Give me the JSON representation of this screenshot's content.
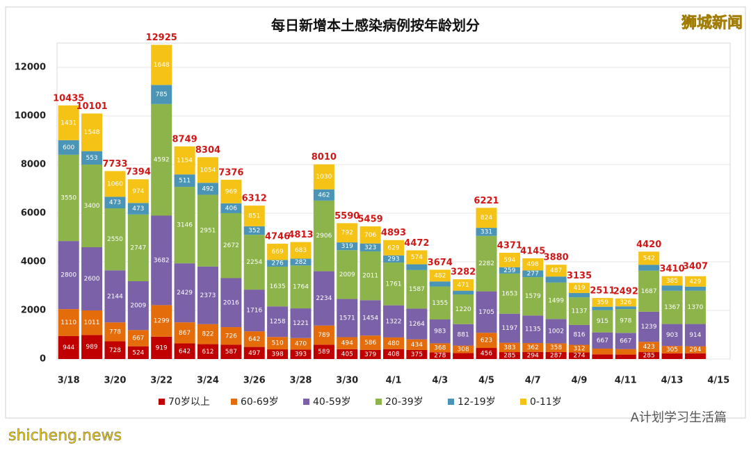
{
  "chart_data": {
    "type": "stacked_bar",
    "title": "每日新增本土感染病例按年龄划分",
    "categories": [
      "3/18",
      null,
      "3/20",
      null,
      "3/22",
      null,
      "3/24",
      null,
      "3/26",
      null,
      "3/28",
      null,
      "3/30",
      null,
      "4/1",
      null,
      "4/3",
      null,
      "4/5",
      null,
      "4/7",
      null,
      "4/9",
      null,
      "4/11",
      null,
      "4/13",
      null,
      "4/15"
    ],
    "series": [
      {
        "name": "70岁以上",
        "color": "#c00000",
        "values": [
          944,
          989,
          728,
          524,
          919,
          642,
          612,
          587,
          497,
          398,
          393,
          589,
          405,
          379,
          408,
          375,
          278,
          247,
          456,
          285,
          294,
          287,
          274,
          193,
          183,
          285,
          233,
          233,
          null
        ]
      },
      {
        "name": "60-69岁",
        "color": "#e46c0a",
        "values": [
          1110,
          1011,
          778,
          667,
          1299,
          867,
          822,
          726,
          642,
          510,
          470,
          789,
          494,
          586,
          480,
          434,
          368,
          308,
          623,
          383,
          362,
          358,
          312,
          235,
          227,
          423,
          305,
          294,
          null
        ]
      },
      {
        "name": "40-59岁",
        "color": "#7b62a8",
        "values": [
          2800,
          2600,
          2144,
          2009,
          3682,
          2429,
          2373,
          2016,
          1716,
          1258,
          1221,
          2234,
          1571,
          1454,
          1322,
          1264,
          983,
          881,
          1705,
          1197,
          1135,
          1002,
          816,
          667,
          667,
          1239,
          903,
          914,
          null
        ]
      },
      {
        "name": "20-39岁",
        "color": "#8db44a",
        "values": [
          3550,
          3400,
          2550,
          2747,
          4592,
          3146,
          2951,
          2672,
          2254,
          1635,
          1764,
          2906,
          2009,
          2011,
          1761,
          1587,
          1355,
          1220,
          2282,
          1653,
          1579,
          1499,
          1137,
          915,
          978,
          1687,
          1367,
          1370,
          null
        ]
      },
      {
        "name": "12-19岁",
        "color": "#4a95b5",
        "values": [
          600,
          553,
          473,
          473,
          785,
          511,
          492,
          406,
          352,
          276,
          282,
          462,
          319,
          323,
          293,
          238,
          208,
          155,
          331,
          259,
          277,
          247,
          177,
          142,
          111,
          244,
          217,
          167,
          null
        ]
      },
      {
        "name": "0-11岁",
        "color": "#f5c216",
        "values": [
          1431,
          1548,
          1060,
          974,
          1648,
          1154,
          1054,
          969,
          851,
          669,
          683,
          1030,
          792,
          706,
          629,
          574,
          482,
          471,
          824,
          594,
          498,
          487,
          419,
          359,
          326,
          542,
          385,
          429,
          null
        ]
      }
    ],
    "totals": [
      10435,
      10101,
      7733,
      7394,
      12925,
      8749,
      8304,
      7376,
      6312,
      4746,
      4813,
      8010,
      5590,
      5459,
      4893,
      4472,
      3674,
      3282,
      6221,
      4371,
      4145,
      3880,
      3135,
      2511,
      2492,
      4420,
      3410,
      3407,
      null
    ],
    "ylim": [
      0,
      13000
    ],
    "yticks": [
      0,
      2000,
      4000,
      6000,
      8000,
      10000,
      12000
    ],
    "grid": true,
    "legend": "bottom"
  },
  "watermark": "狮城新闻",
  "footer": {
    "source": "shicheng.news",
    "account": "A计划学习生活篇"
  }
}
